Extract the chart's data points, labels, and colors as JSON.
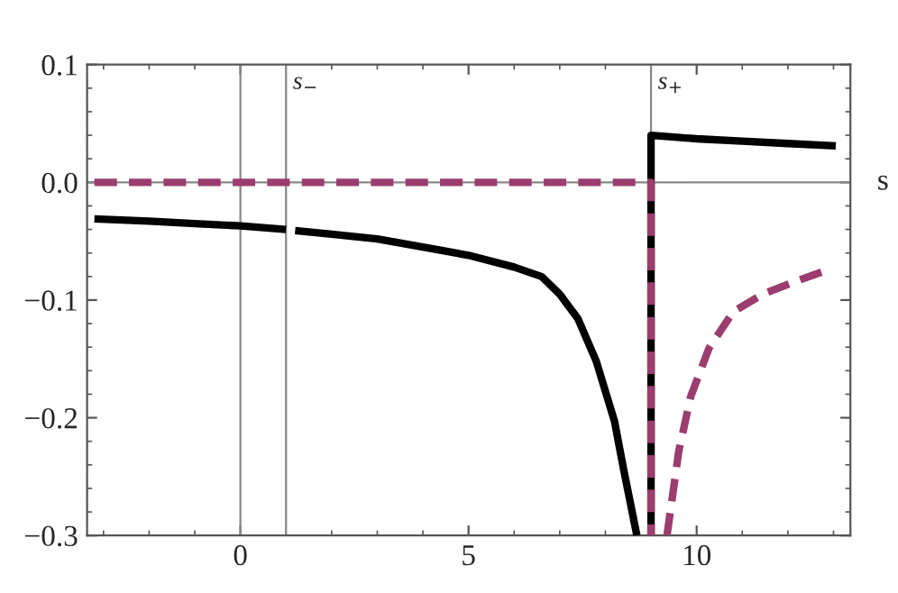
{
  "chart_data": {
    "type": "line",
    "xlabel": "s",
    "xlim": [
      -3.36,
      13.37
    ],
    "ylim": [
      -0.3,
      0.1
    ],
    "xticks": [
      0,
      5,
      10
    ],
    "yticks": [
      {
        "value": -0.3,
        "label": "−0.3"
      },
      {
        "value": -0.2,
        "label": "−0.2"
      },
      {
        "value": -0.1,
        "label": "−0.1"
      },
      {
        "value": 0,
        "label": "0.0"
      },
      {
        "value": 0.1,
        "label": "0.1"
      }
    ],
    "grid": false,
    "marker": "none",
    "ref_lines": [
      {
        "axis": "x",
        "value": 0,
        "label": null,
        "color": "#888888"
      },
      {
        "axis": "y",
        "value": 0,
        "label": null,
        "color": "#888888"
      },
      {
        "axis": "x",
        "value": 1,
        "label": "s$_{−}$",
        "color": "#888888"
      },
      {
        "axis": "x",
        "value": 9,
        "label": "s$_{+}$",
        "color": "#888888"
      }
    ],
    "series": [
      {
        "color": "#000000",
        "line_style": "solid",
        "x": [
          -3.2,
          -2,
          -1,
          0,
          1,
          1.05,
          1.2,
          2,
          3,
          4,
          5,
          6,
          6.6,
          7.0,
          7.4,
          7.8,
          8.2,
          8.4,
          8.69,
          8.85,
          9,
          9,
          10,
          11,
          12,
          13.05
        ],
        "values": [
          -0.031,
          -0.033,
          -0.035,
          -0.037,
          -0.04,
          null,
          -0.041,
          -0.044,
          -0.048,
          -0.055,
          -0.062,
          -0.072,
          -0.08,
          -0.095,
          -0.116,
          -0.152,
          -0.203,
          -0.244,
          -0.3,
          null,
          -0.3,
          0.04,
          0.037,
          0.035,
          0.033,
          0.031
        ]
      },
      {
        "color": "#9b3d6e",
        "line_style": "dashed",
        "x": [
          -3.2,
          9,
          9,
          9.2,
          9.35,
          9.61,
          9.87,
          10.27,
          10.8,
          11.45,
          12.25,
          12.83
        ],
        "values": [
          0,
          0,
          -0.3,
          null,
          -0.3,
          -0.228,
          -0.182,
          -0.141,
          -0.11,
          -0.095,
          -0.083,
          -0.075
        ]
      }
    ]
  }
}
